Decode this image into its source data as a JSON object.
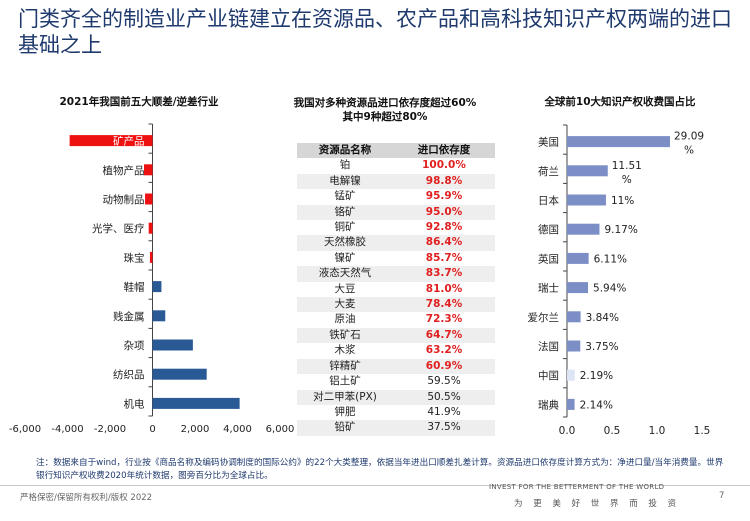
{
  "title": "门类齐全的制造业产业链建立在资源品、农产品和高科技知识产权两端的进口基础之上",
  "chart_data": [
    {
      "type": "bar",
      "orientation": "horizontal",
      "title": "2021年我国前五大顺差/逆差行业",
      "categories": [
        "矿产品",
        "植物产品",
        "动物制品",
        "光学、医疗",
        "珠宝",
        "鞋帽",
        "贱金属",
        "杂项",
        "纺织品",
        "机电"
      ],
      "values": [
        -3900,
        -400,
        -350,
        -180,
        -120,
        420,
        600,
        1900,
        2550,
        4100
      ],
      "xlim": [
        -6000,
        6000
      ],
      "xticks": [
        "-6,000",
        "-4,000",
        "-2,000",
        "0",
        "2,000",
        "4,000",
        "6,000"
      ],
      "colors": {
        "negative": "#ee1111",
        "positive": "#2a5a96"
      }
    },
    {
      "type": "table",
      "title": "我国对多种资源品进口依存度超过60%\n其中9种超过80%",
      "columns": [
        "资源品名称",
        "进口依存度"
      ],
      "rows": [
        [
          "铂",
          "100.0%"
        ],
        [
          "电解镍",
          "98.8%"
        ],
        [
          "锰矿",
          "95.9%"
        ],
        [
          "铬矿",
          "95.0%"
        ],
        [
          "铜矿",
          "92.8%"
        ],
        [
          "天然橡胶",
          "86.4%"
        ],
        [
          "镍矿",
          "85.7%"
        ],
        [
          "液态天然气",
          "83.7%"
        ],
        [
          "大豆",
          "81.0%"
        ],
        [
          "大麦",
          "78.4%"
        ],
        [
          "原油",
          "72.3%"
        ],
        [
          "铁矿石",
          "64.7%"
        ],
        [
          "木浆",
          "63.2%"
        ],
        [
          "锌精矿",
          "60.9%"
        ],
        [
          "铝土矿",
          "59.5%"
        ],
        [
          "对二甲苯(PX)",
          "50.5%"
        ],
        [
          "钾肥",
          "41.9%"
        ],
        [
          "铅矿",
          "37.5%"
        ]
      ],
      "highlight_threshold": 60,
      "highlight_color": "#e02020"
    },
    {
      "type": "bar",
      "orientation": "horizontal",
      "title": "全球前10大知识产权收费国占比",
      "categories": [
        "美国",
        "荷兰",
        "日本",
        "德国",
        "英国",
        "瑞士",
        "爱尔兰",
        "法国",
        "中国",
        "瑞典"
      ],
      "values": [
        0.2909,
        0.1151,
        0.11,
        0.0917,
        0.0611,
        0.0594,
        0.0384,
        0.0375,
        0.0219,
        0.0214
      ],
      "labels": [
        "29.09%",
        "11.51%",
        "11%",
        "9.17%",
        "6.11%",
        "5.94%",
        "3.84%",
        "3.75%",
        "2.19%",
        "2.14%"
      ],
      "xlim": [
        0,
        0.015
      ],
      "xticks": [
        "0.0",
        "0.5",
        "1.0",
        "1.5"
      ],
      "colors": {
        "bar": "#7b8fc6",
        "highlight": "#dde4f5"
      }
    }
  ],
  "note": "注：数据来自于wind，行业按《商品名称及编码协调制度的国际公约》的22个大类整理，依据当年进出口顺差扎差计算。资源品进口依存度计算方式为：净进口量/当年消费量。世界银行知识产权收费2020年统计数据，图旁百分比为全球占比。",
  "footer": {
    "left": "严格保密/保留所有权利/版权 2022",
    "right_en": "INVEST FOR THE BETTERMENT OF THE WORLD",
    "right_cn": "为 更 美 好 世 界 而 投 资",
    "page": "7"
  }
}
